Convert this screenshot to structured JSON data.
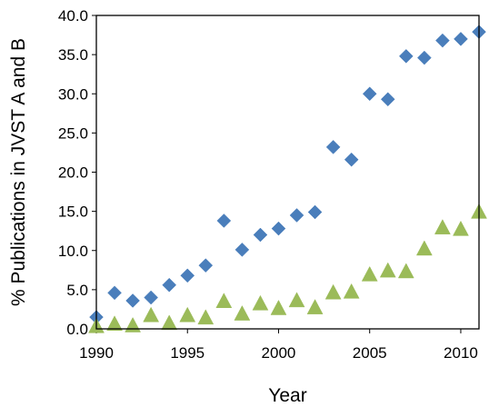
{
  "chart_data": {
    "type": "scatter",
    "title": "",
    "xlabel": "Year",
    "ylabel": "% Publications in JVST A and B",
    "xlim": [
      1990,
      2011
    ],
    "ylim": [
      0.0,
      40.0
    ],
    "x_ticks": [
      "1990",
      "1995",
      "2000",
      "2005",
      "2010"
    ],
    "y_ticks": [
      "0.0",
      "5.0",
      "10.0",
      "15.0",
      "20.0",
      "25.0",
      "30.0",
      "35.0",
      "40.0"
    ],
    "grid": false,
    "legend": "none",
    "series": [
      {
        "marker": "diamond",
        "color": "#4a7ebb",
        "x": [
          1990,
          1991,
          1992,
          1993,
          1994,
          1995,
          1996,
          1997,
          1998,
          1999,
          2000,
          2001,
          2002,
          2003,
          2004,
          2005,
          2006,
          2007,
          2008,
          2009,
          2010,
          2011
        ],
        "y": [
          1.5,
          4.6,
          3.6,
          4.0,
          5.6,
          6.8,
          8.1,
          13.8,
          10.1,
          12.0,
          12.8,
          14.5,
          14.9,
          23.2,
          21.6,
          30.0,
          29.3,
          34.8,
          34.6,
          36.8,
          37.0,
          37.9
        ]
      },
      {
        "marker": "triangle",
        "color": "#9bbb59",
        "x": [
          1990,
          1991,
          1992,
          1993,
          1994,
          1995,
          1996,
          1997,
          1998,
          1999,
          2000,
          2001,
          2002,
          2003,
          2004,
          2005,
          2006,
          2007,
          2008,
          2009,
          2010,
          2011
        ],
        "y": [
          0.2,
          0.5,
          0.3,
          1.6,
          0.6,
          1.6,
          1.3,
          3.4,
          1.8,
          3.1,
          2.5,
          3.5,
          2.6,
          4.5,
          4.6,
          6.8,
          7.3,
          7.2,
          10.1,
          12.8,
          12.6,
          14.8
        ]
      }
    ]
  }
}
